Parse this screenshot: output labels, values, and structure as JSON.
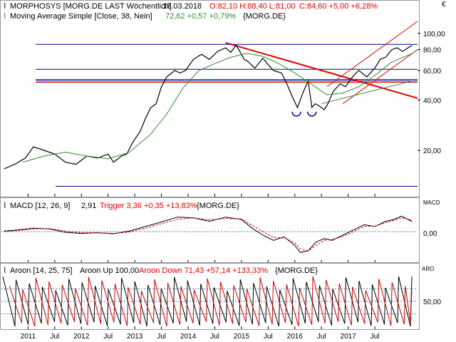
{
  "header": {
    "currency": "€",
    "title": "MORPHOSYS [MORG.DE LAST Wöchentlich]",
    "date": "18.03.2018",
    "ohlc": "O:82,10 H:88,40 L:81,00",
    "change": "C:84,60 +5,00 +6,28%",
    "ma_label": "Moving Average Simple [Close, 38, Nein]",
    "ma_value": "72,62 +0,57 +0,79%",
    "ma_symbol": "{MORG.DE}"
  },
  "macd_panel": {
    "label": "MACD [12, 26, 9]",
    "value": "2,91",
    "trigger": "Trigger 3,36 +0,35 +13,83%",
    "symbol": "{MORG.DE}",
    "axis_title": "MACD",
    "tick": "0,00"
  },
  "aroon_panel": {
    "label": "Aroon [14, 25, 75]",
    "up": "Aroon Up 100,00",
    "down": "Aroon Down 71,43 +57,14 +133,33%",
    "symbol": "{MORG.DE}",
    "axis_title": "ARO",
    "tick": "50,00"
  },
  "colors": {
    "price": "#000000",
    "ma": "#2e8b2e",
    "red": "#e00000",
    "blue": "#00008b",
    "dotted": "#4488aa",
    "down": "#cc0000"
  },
  "chart_data": [
    {
      "type": "line",
      "scale": "log",
      "ylim": [
        11,
        118
      ],
      "x_range": [
        2010.5,
        2018.3
      ],
      "y_ticks": [
        "100,00",
        "80,00",
        "60,00",
        "40,00",
        "20,00"
      ],
      "y_tick_values": [
        100,
        80,
        60,
        40,
        20
      ],
      "x_ticks": [
        {
          "label": "2011",
          "x": 2011.0
        },
        {
          "label": "Jul",
          "x": 2011.5
        },
        {
          "label": "2012",
          "x": 2012.0
        },
        {
          "label": "Jul",
          "x": 2012.5
        },
        {
          "label": "2013",
          "x": 2013.0
        },
        {
          "label": "Jul",
          "x": 2013.5
        },
        {
          "label": "2014",
          "x": 2014.0
        },
        {
          "label": "Jul",
          "x": 2014.5
        },
        {
          "label": "2015",
          "x": 2015.0
        },
        {
          "label": "Jul",
          "x": 2015.5
        },
        {
          "label": "2016",
          "x": 2016.0
        },
        {
          "label": "Jul",
          "x": 2016.5
        },
        {
          "label": "2017",
          "x": 2017.0
        },
        {
          "label": "Jul",
          "x": 2017.5
        }
      ],
      "series": [
        {
          "role": "price",
          "x": [
            2010.55,
            2010.75,
            2010.95,
            2011.1,
            2011.3,
            2011.5,
            2011.7,
            2011.9,
            2012.1,
            2012.3,
            2012.5,
            2012.6,
            2012.75,
            2012.85,
            2012.95,
            2013.1,
            2013.2,
            2013.3,
            2013.4,
            2013.5,
            2013.6,
            2013.75,
            2013.85,
            2013.95,
            2014.1,
            2014.25,
            2014.4,
            2014.55,
            2014.7,
            2014.8,
            2014.9,
            2015.0,
            2015.05,
            2015.12,
            2015.25,
            2015.4,
            2015.5,
            2015.6,
            2015.75,
            2015.85,
            2015.95,
            2016.05,
            2016.15,
            2016.25,
            2016.32,
            2016.38,
            2016.45,
            2016.55,
            2016.62,
            2016.72,
            2016.85,
            2016.95,
            2017.1,
            2017.2,
            2017.35,
            2017.5,
            2017.6,
            2017.7,
            2017.82,
            2017.92,
            2018.02,
            2018.12,
            2018.2
          ],
          "y": [
            15.5,
            16.5,
            18,
            21,
            20,
            19,
            17,
            16.5,
            18.5,
            18,
            19,
            17,
            18.5,
            19,
            22,
            26,
            31,
            36,
            38,
            48,
            55,
            60,
            58,
            60,
            70,
            75,
            70,
            78,
            82,
            77,
            85,
            75,
            70,
            68,
            62,
            71,
            65,
            60,
            58,
            50,
            42,
            36,
            44,
            52,
            36,
            38,
            37,
            35,
            38,
            45,
            50,
            48,
            56,
            60,
            55,
            62,
            70,
            72,
            80,
            82,
            78,
            82,
            84.6
          ]
        },
        {
          "role": "sma38",
          "x": [
            2010.9,
            2011.3,
            2011.7,
            2012.1,
            2012.5,
            2012.9,
            2013.3,
            2013.6,
            2013.9,
            2014.2,
            2014.5,
            2014.8,
            2015.1,
            2015.4,
            2015.7,
            2016.0,
            2016.3,
            2016.6,
            2016.9,
            2017.2,
            2017.5,
            2017.8,
            2018.2
          ],
          "y": [
            17,
            18.5,
            19.5,
            18.5,
            17.8,
            19.5,
            25,
            33,
            47,
            60,
            66,
            72,
            76,
            73,
            66,
            58,
            50,
            43,
            44,
            48,
            56,
            67,
            76
          ]
        }
      ],
      "horizontal_lines": [
        {
          "value": 86,
          "color": "blue"
        },
        {
          "value": 61,
          "color": "blue"
        },
        {
          "value": 53,
          "color": "blue"
        },
        {
          "value": 52,
          "color": "blue"
        },
        {
          "value": 12.2,
          "color": "blue"
        },
        {
          "value": 51,
          "color": "red"
        }
      ],
      "trendlines": [
        {
          "x": [
            2014.7,
            2018.3
          ],
          "y": [
            88,
            41
          ],
          "color": "red",
          "thick": true
        },
        {
          "x": [
            2016.6,
            2018.3
          ],
          "y": [
            48,
            118
          ],
          "color": "red",
          "thick": false
        },
        {
          "x": [
            2016.9,
            2018.3
          ],
          "y": [
            38,
            80
          ],
          "color": "red",
          "thick": false
        },
        {
          "x": [
            2016.5,
            2018.2
          ],
          "y": [
            38,
            52
          ],
          "color": "ma",
          "thick": false
        }
      ],
      "markers": [
        {
          "x": 2016.03,
          "y": 34
        },
        {
          "x": 2016.32,
          "y": 34
        }
      ]
    },
    {
      "type": "line",
      "title": "MACD",
      "ylim": [
        -8,
        6
      ],
      "zero_line": 0,
      "series": [
        {
          "name": "MACD",
          "x": [
            2010.55,
            2010.8,
            2011.1,
            2011.4,
            2011.7,
            2012.0,
            2012.3,
            2012.6,
            2012.9,
            2013.2,
            2013.5,
            2013.8,
            2014.1,
            2014.4,
            2014.7,
            2015.0,
            2015.2,
            2015.4,
            2015.6,
            2015.8,
            2016.0,
            2016.1,
            2016.25,
            2016.4,
            2016.55,
            2016.7,
            2016.9,
            2017.1,
            2017.3,
            2017.5,
            2017.7,
            2017.85,
            2018.0,
            2018.2
          ],
          "y": [
            0.2,
            0.5,
            1.0,
            0.8,
            -0.2,
            -0.5,
            -0.3,
            -0.6,
            0.2,
            1.5,
            2.8,
            4.2,
            4.0,
            3.0,
            4.2,
            3.5,
            1.0,
            -1.0,
            -2.5,
            -1.5,
            -4.0,
            -6.0,
            -5.5,
            -3.0,
            -2.0,
            -2.5,
            -1.0,
            0.5,
            2.0,
            1.5,
            3.0,
            3.5,
            4.5,
            2.91
          ]
        },
        {
          "name": "Trigger",
          "x": [
            2010.55,
            2010.8,
            2011.1,
            2011.4,
            2011.7,
            2012.0,
            2012.3,
            2012.6,
            2012.9,
            2013.2,
            2013.5,
            2013.8,
            2014.1,
            2014.4,
            2014.7,
            2015.0,
            2015.2,
            2015.4,
            2015.6,
            2015.8,
            2016.0,
            2016.1,
            2016.25,
            2016.4,
            2016.55,
            2016.7,
            2016.9,
            2017.1,
            2017.3,
            2017.5,
            2017.7,
            2017.85,
            2018.0,
            2018.2
          ],
          "y": [
            0.0,
            0.3,
            0.8,
            0.9,
            0.2,
            -0.3,
            -0.3,
            -0.5,
            -0.1,
            1.0,
            2.3,
            3.6,
            4.0,
            3.4,
            3.8,
            3.7,
            1.8,
            0.0,
            -1.7,
            -1.8,
            -3.2,
            -5.0,
            -5.5,
            -4.0,
            -2.5,
            -2.3,
            -1.4,
            0.0,
            1.5,
            1.6,
            2.6,
            3.2,
            4.0,
            3.36
          ]
        }
      ]
    },
    {
      "type": "line",
      "title": "ARO",
      "ylim": [
        0,
        100
      ],
      "levels": [
        25,
        50,
        75
      ],
      "series": [
        {
          "name": "Aroon Up",
          "period_cycles": 31,
          "phase": 0.0,
          "last": 100
        },
        {
          "name": "Aroon Down",
          "period_cycles": 31,
          "phase": 0.5,
          "last": 71.43
        }
      ]
    }
  ]
}
